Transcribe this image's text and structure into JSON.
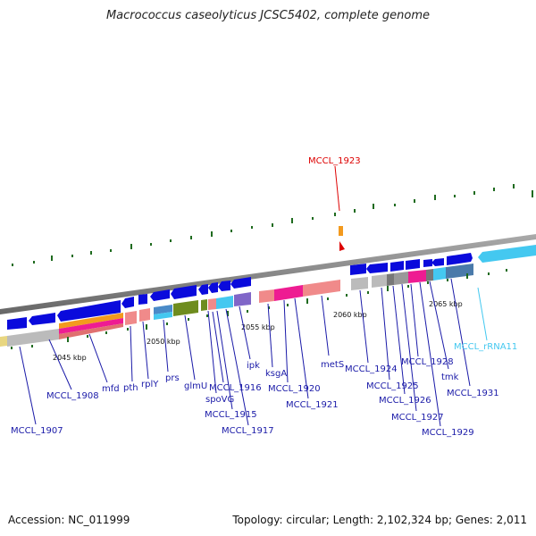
{
  "title": "Macrococcus caseolyticus JCSC5402, complete genome",
  "footer": {
    "accession": "Accession: NC_011999",
    "topology": "Topology: circular; Length: 2,102,324 bp; Genes: 2,011"
  },
  "colors": {
    "cds": "#0a0adc",
    "backbone": "#888888",
    "gene_label": "#1a1aa8",
    "highlight": "#dd0000",
    "rrna": "#44c8f0",
    "tick": "#1f6b1f"
  },
  "scale": [
    {
      "label": "2045 kbp"
    },
    {
      "label": "2050 kbp"
    },
    {
      "label": "2055 kbp"
    },
    {
      "label": "2060 kbp"
    },
    {
      "label": "2065 kbp"
    }
  ],
  "labels": {
    "MCCL_1923": "MCCL_1923",
    "MCCL_1907": "MCCL_1907",
    "MCCL_1908": "MCCL_1908",
    "mfd": "mfd",
    "pth": "pth",
    "rplY": "rplY",
    "prs": "prs",
    "glmU": "glmU",
    "spoVG": "spoVG",
    "MCCL_1915": "MCCL_1915",
    "MCCL_1916": "MCCL_1916",
    "MCCL_1917": "MCCL_1917",
    "ipk": "ipk",
    "ksgA": "ksgA",
    "MCCL_1920": "MCCL_1920",
    "MCCL_1921": "MCCL_1921",
    "metS": "metS",
    "MCCL_1924": "MCCL_1924",
    "MCCL_1925": "MCCL_1925",
    "MCCL_1926": "MCCL_1926",
    "MCCL_1927": "MCCL_1927",
    "MCCL_1928": "MCCL_1928",
    "tmk": "tmk",
    "MCCL_1929": "MCCL_1929",
    "MCCL_1931": "MCCL_1931",
    "MCCL_rRNA11": "MCCL_rRNA11"
  }
}
